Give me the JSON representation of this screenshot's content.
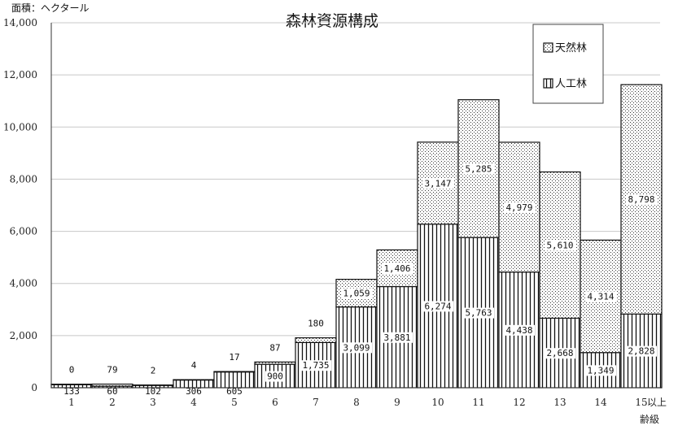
{
  "chart_data": {
    "type": "bar",
    "stacked": true,
    "title": "森林資源構成",
    "ylabel": "面積：ヘクタール",
    "xlabel": "齢級",
    "x_extra_label": "以上",
    "ylim": [
      0,
      14000
    ],
    "yticks": [
      0,
      2000,
      4000,
      6000,
      8000,
      10000,
      12000,
      14000
    ],
    "ytick_labels": [
      "0",
      "2,000",
      "4,000",
      "6,000",
      "8,000",
      "10,000",
      "12,000",
      "14,000"
    ],
    "categories": [
      "1",
      "2",
      "3",
      "4",
      "5",
      "6",
      "7",
      "8",
      "9",
      "10",
      "11",
      "12",
      "13",
      "14",
      "15"
    ],
    "series": [
      {
        "name": "人工林",
        "values": [
          133,
          60,
          102,
          306,
          605,
          900,
          1735,
          3099,
          3881,
          6274,
          5763,
          4438,
          2668,
          1349,
          2828
        ],
        "labels": [
          "133",
          "60",
          "102",
          "306",
          "605",
          "900",
          "1,735",
          "3,099",
          "3,881",
          "6,274",
          "5,763",
          "4,438",
          "2,668",
          "1,349",
          "2,828"
        ]
      },
      {
        "name": "天然林",
        "values": [
          0,
          79,
          2,
          4,
          17,
          87,
          180,
          1059,
          1406,
          3147,
          5285,
          4979,
          5610,
          4314,
          8798
        ],
        "labels": [
          "0",
          "79",
          "2",
          "4",
          "17",
          "87",
          "180",
          "1,059",
          "1,406",
          "3,147",
          "5,285",
          "4,979",
          "5,610",
          "4,314",
          "8,798"
        ]
      }
    ],
    "legend": [
      "天然林",
      "人工林"
    ],
    "legend_position": "top-right",
    "grid": true
  }
}
